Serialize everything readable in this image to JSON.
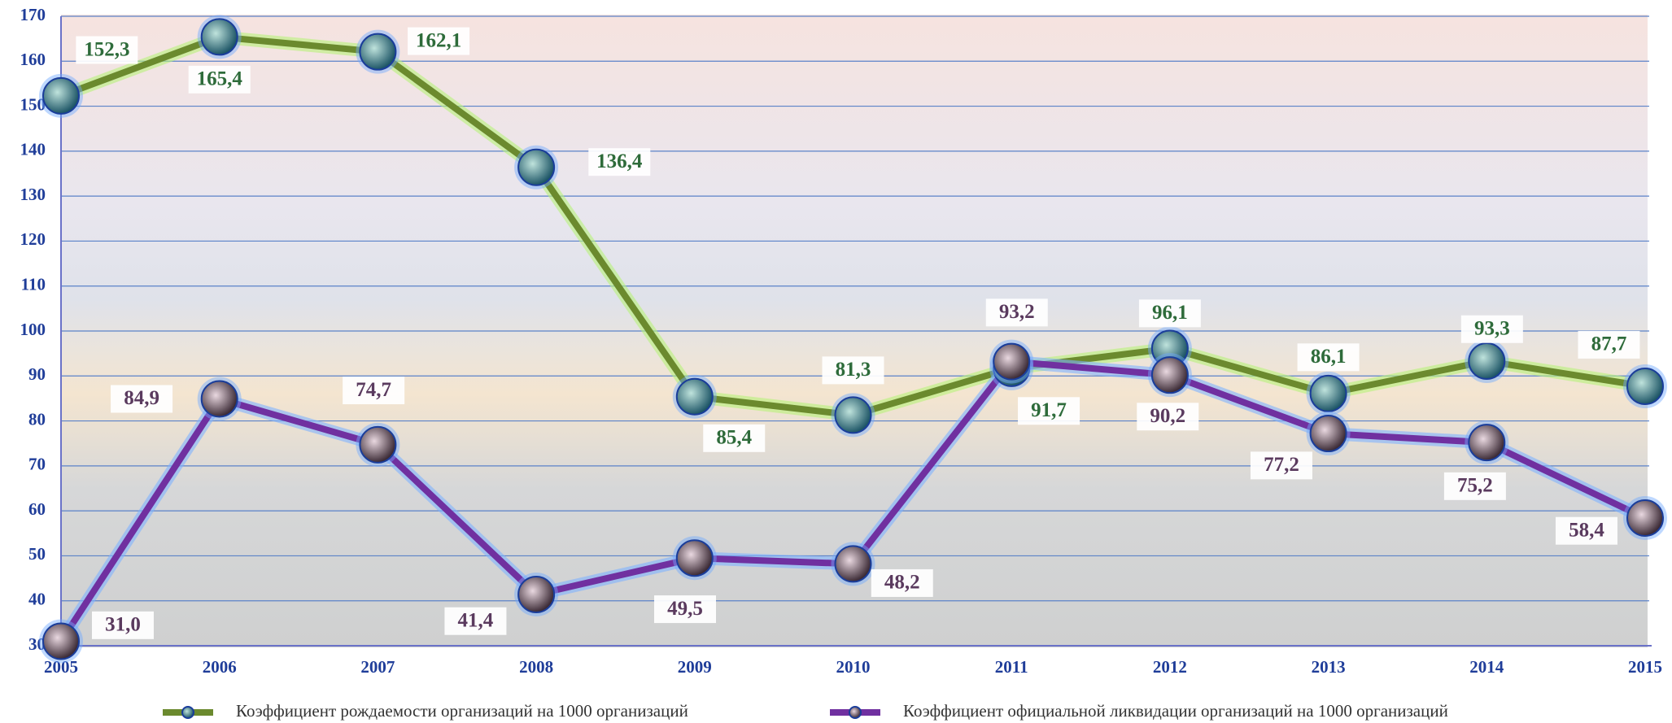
{
  "chart_data": {
    "type": "line",
    "categories": [
      "2005",
      "2006",
      "2007",
      "2008",
      "2009",
      "2010",
      "2011",
      "2012",
      "2013",
      "2014",
      "2015"
    ],
    "series": [
      {
        "name": "Коэффициент  рождаемости  организаций  на  1000  организаций",
        "color": "#6b8a2e",
        "values": [
          152.3,
          165.4,
          162.1,
          136.4,
          85.4,
          81.3,
          91.7,
          96.1,
          86.1,
          93.3,
          87.7
        ],
        "value_labels": [
          "152,3",
          "165,4",
          "162,1",
          "136,4",
          "85,4",
          "81,3",
          "91,7",
          "96,1",
          "86,1",
          "93,3",
          "87,7"
        ]
      },
      {
        "name": "Коэффициент официальной ликвидации организаций на 1000 организаций",
        "color": "#7030a0",
        "values": [
          31.0,
          84.9,
          74.7,
          41.4,
          49.5,
          48.2,
          93.2,
          90.2,
          77.2,
          75.2,
          58.4
        ],
        "value_labels": [
          "31,0",
          "84,9",
          "74,7",
          "41,4",
          "49,5",
          "48,2",
          "93,2",
          "90,2",
          "77,2",
          "75,2",
          "58,4"
        ]
      }
    ],
    "ylim": [
      30,
      170
    ],
    "yticks": [
      30,
      40,
      50,
      60,
      70,
      80,
      90,
      100,
      110,
      120,
      130,
      140,
      150,
      160,
      170
    ],
    "grid": true
  }
}
